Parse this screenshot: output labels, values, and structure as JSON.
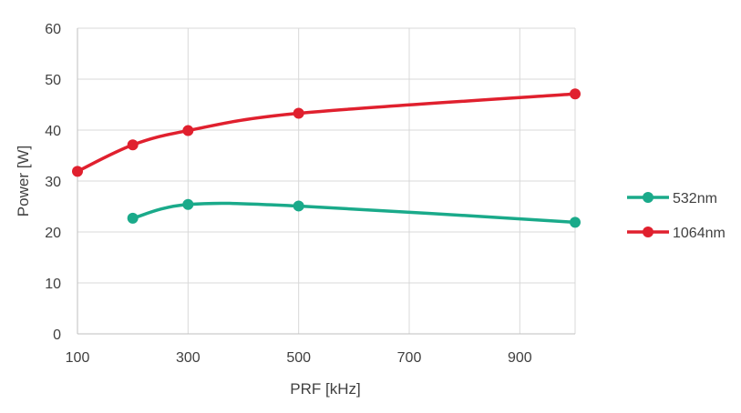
{
  "chart_data": {
    "type": "line",
    "smooth": true,
    "xlabel": "PRF [kHz]",
    "ylabel": "Power [W]",
    "xlim": [
      100,
      1000
    ],
    "ylim": [
      0,
      60
    ],
    "x_ticks": [
      100,
      300,
      500,
      700,
      900
    ],
    "y_ticks": [
      0,
      10,
      20,
      30,
      40,
      50,
      60
    ],
    "grid": true,
    "legend_position": "right",
    "series": [
      {
        "name": "532nm",
        "color": "#1aaa8a",
        "points": [
          [
            200,
            22.7
          ],
          [
            300,
            25.4
          ],
          [
            500,
            25.1
          ],
          [
            1000,
            21.9
          ]
        ]
      },
      {
        "name": "1064nm",
        "color": "#e0202e",
        "points": [
          [
            100,
            31.9
          ],
          [
            200,
            37.1
          ],
          [
            300,
            39.9
          ],
          [
            500,
            43.3
          ],
          [
            1000,
            47.1
          ]
        ]
      }
    ]
  }
}
